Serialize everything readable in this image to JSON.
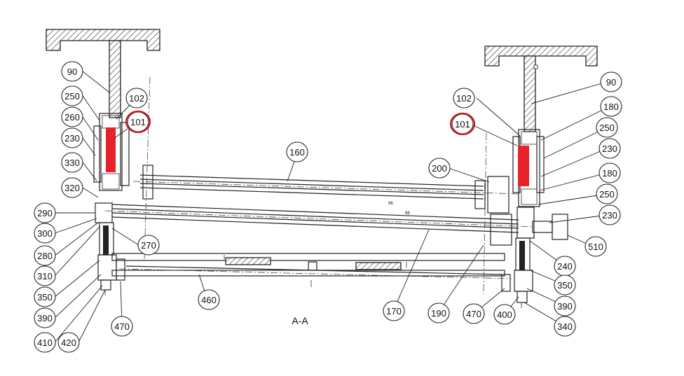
{
  "drawing": {
    "section_label": "A-A",
    "highlight_color": "#e8222a",
    "circle_color": "#cc1a22",
    "highlighted_part": "101",
    "left_labels": [
      "90",
      "250",
      "260",
      "230",
      "330",
      "320",
      "290",
      "300",
      "280",
      "310",
      "350",
      "390",
      "410",
      "420",
      "102",
      "101",
      "270",
      "470",
      "460"
    ],
    "center_labels": [
      "160",
      "170",
      "190",
      "200"
    ],
    "right_labels": [
      "90",
      "180",
      "250",
      "230",
      "180",
      "250",
      "230",
      "510",
      "240",
      "350",
      "390",
      "340",
      "400",
      "470",
      "102",
      "101"
    ],
    "dimension_marks": [
      "96",
      "96"
    ]
  }
}
